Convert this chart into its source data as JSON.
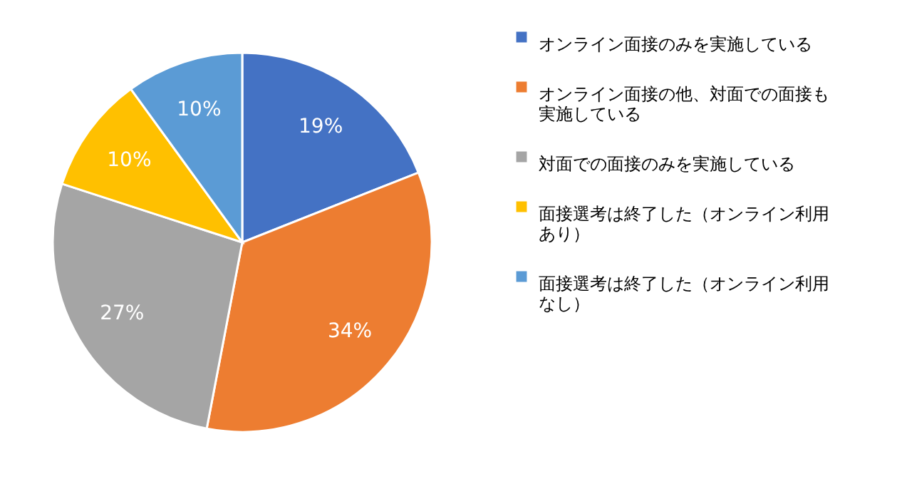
{
  "chart_data": {
    "type": "pie",
    "categories": [
      "オンライン面接のみを実施している",
      "オンライン面接の他、対面での面接も実施している",
      "対面での面接のみを実施している",
      "面接選考は終了した（オンライン利用あり）",
      "面接選考は終了した（オンライン利用なし）"
    ],
    "values": [
      19,
      34,
      27,
      10,
      10
    ],
    "colors": [
      "#4472c4",
      "#ed7d31",
      "#a5a5a5",
      "#ffc000",
      "#5b9bd5"
    ],
    "value_labels": [
      "19%",
      "34%",
      "27%",
      "10%",
      "10%"
    ],
    "legend": "right"
  }
}
